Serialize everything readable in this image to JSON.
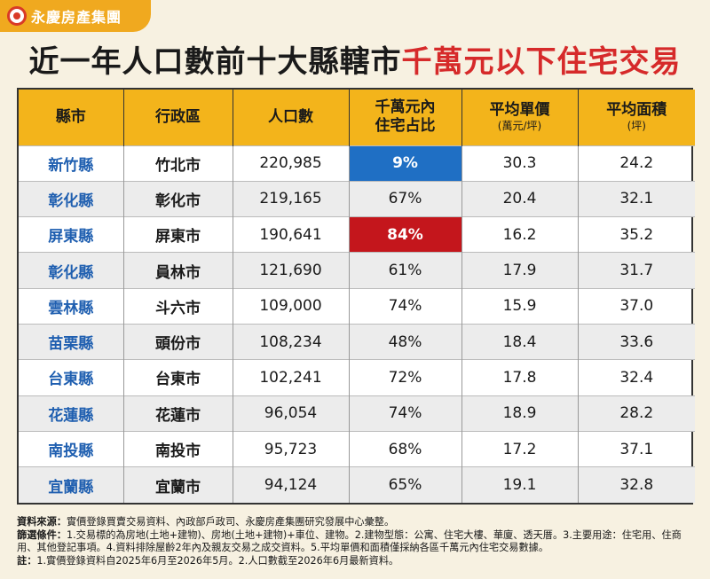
{
  "brand": {
    "name": "永慶房產集團",
    "accent": "#f0a91f",
    "mark_color": "#d93a26"
  },
  "title": {
    "part1": "近一年人口數前十大縣轄市",
    "part2": "千萬元以下住宅交易",
    "part2_color": "#d62a2a"
  },
  "table": {
    "headers": [
      {
        "main": "縣市",
        "sub": ""
      },
      {
        "main": "行政區",
        "sub": ""
      },
      {
        "main": "人口數",
        "sub": ""
      },
      {
        "main": "千萬元內",
        "main2": "住宅占比",
        "sub": ""
      },
      {
        "main": "平均單價",
        "sub": "(萬元/坪)"
      },
      {
        "main": "平均面積",
        "sub": "(坪)"
      }
    ],
    "rows": [
      {
        "county": "新竹縣",
        "district": "竹北市",
        "population": "220,985",
        "share": "9%",
        "price": "30.3",
        "area": "24.2",
        "highlight": "blue"
      },
      {
        "county": "彰化縣",
        "district": "彰化市",
        "population": "219,165",
        "share": "67%",
        "price": "20.4",
        "area": "32.1",
        "highlight": ""
      },
      {
        "county": "屏東縣",
        "district": "屏東市",
        "population": "190,641",
        "share": "84%",
        "price": "16.2",
        "area": "35.2",
        "highlight": "red"
      },
      {
        "county": "彰化縣",
        "district": "員林市",
        "population": "121,690",
        "share": "61%",
        "price": "17.9",
        "area": "31.7",
        "highlight": ""
      },
      {
        "county": "雲林縣",
        "district": "斗六市",
        "population": "109,000",
        "share": "74%",
        "price": "15.9",
        "area": "37.0",
        "highlight": ""
      },
      {
        "county": "苗栗縣",
        "district": "頭份市",
        "population": "108,234",
        "share": "48%",
        "price": "18.4",
        "area": "33.6",
        "highlight": ""
      },
      {
        "county": "台東縣",
        "district": "台東市",
        "population": "102,241",
        "share": "72%",
        "price": "17.8",
        "area": "32.4",
        "highlight": ""
      },
      {
        "county": "花蓮縣",
        "district": "花蓮市",
        "population": "96,054",
        "share": "74%",
        "price": "18.9",
        "area": "28.2",
        "highlight": ""
      },
      {
        "county": "南投縣",
        "district": "南投市",
        "population": "95,723",
        "share": "68%",
        "price": "17.2",
        "area": "37.1",
        "highlight": ""
      },
      {
        "county": "宜蘭縣",
        "district": "宜蘭市",
        "population": "94,124",
        "share": "65%",
        "price": "19.1",
        "area": "32.8",
        "highlight": ""
      }
    ]
  },
  "notes": {
    "source_label": "資料來源：",
    "source_text": "實價登錄買賣交易資料、內政部戶政司、永慶房產集團研究發展中心彙整。",
    "filter_label": "篩選條件：",
    "filter_text": "1.交易標的為房地(土地+建物)、房地(土地+建物)+車位、建物。2.建物型態：公寓、住宅大樓、華廈、透天厝。3.主要用途：住宅用、住商用、其他登記事項。4.資料排除屋齡2年內及親友交易之成交資料。5.平均單價和面積僅採納各區千萬元內住宅交易數據。",
    "note_label": "註：",
    "note_text": "1.實價登錄資料自2025年6月至2026年5月。2.人口數截至2026年6月最新資料。"
  }
}
